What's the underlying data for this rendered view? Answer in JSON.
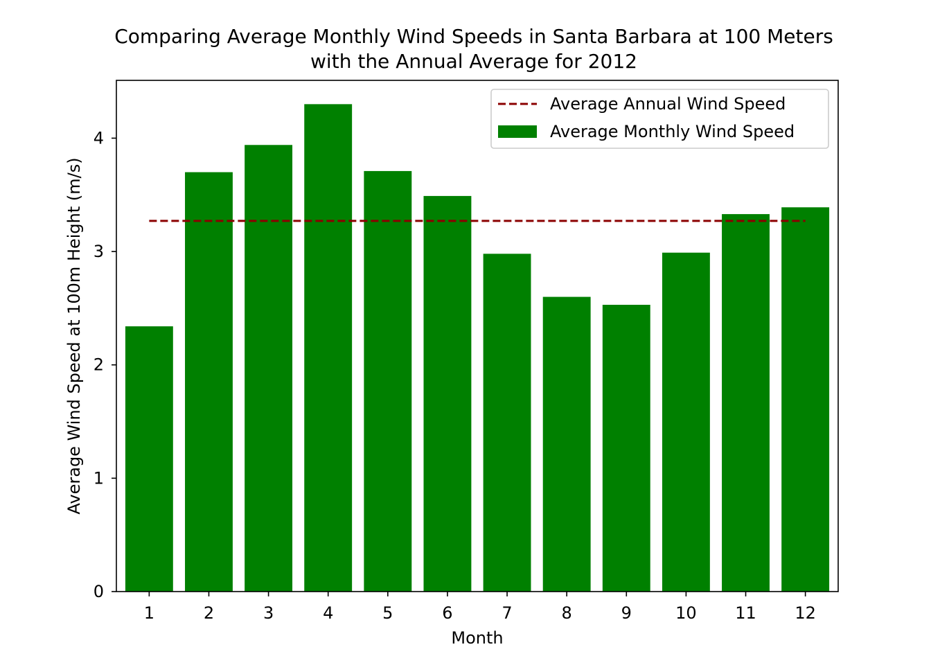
{
  "chart_data": {
    "type": "bar",
    "title_lines": [
      "Comparing Average Monthly Wind Speeds in Santa Barbara at 100 Meters",
      "with the Annual Average for 2012"
    ],
    "xlabel": "Month",
    "ylabel": "Average Wind Speed at 100m Height (m/s)",
    "categories": [
      1,
      2,
      3,
      4,
      5,
      6,
      7,
      8,
      9,
      10,
      11,
      12
    ],
    "xtick_labels": [
      "1",
      "2",
      "3",
      "4",
      "5",
      "6",
      "7",
      "8",
      "9",
      "10",
      "11",
      "12"
    ],
    "yticks": [
      0,
      1,
      2,
      3,
      4
    ],
    "ytick_labels": [
      "0",
      "1",
      "2",
      "3",
      "4"
    ],
    "ylim": [
      0,
      4.51
    ],
    "series": [
      {
        "name": "Average Monthly Wind Speed",
        "kind": "bar",
        "color": "#008000",
        "values": [
          2.34,
          3.7,
          3.94,
          4.3,
          3.71,
          3.49,
          2.98,
          2.6,
          2.53,
          2.99,
          3.33,
          3.39
        ]
      },
      {
        "name": "Average Annual Wind Speed",
        "kind": "hline",
        "color": "#8b0000",
        "linestyle": "dashed",
        "value": 3.27,
        "x_range": [
          1,
          12
        ]
      }
    ],
    "legend": {
      "position": "upper-right",
      "entries": [
        {
          "label": "Average Annual Wind Speed",
          "kind": "dashed-line",
          "color": "#8b0000"
        },
        {
          "label": "Average Monthly Wind Speed",
          "kind": "patch",
          "color": "#008000"
        }
      ]
    },
    "grid": false
  }
}
